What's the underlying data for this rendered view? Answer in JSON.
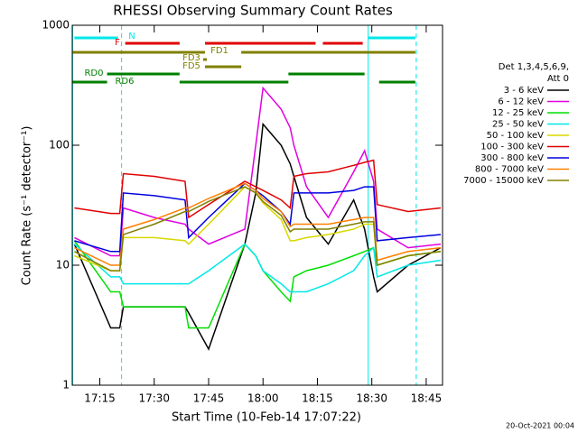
{
  "chart_data": {
    "type": "line",
    "title": "RHESSI Observing Summary Count Rates",
    "x_label": "Start Time (10-Feb-14 17:07:22)",
    "y_label": "Count Rate (s⁻¹ detector⁻¹)",
    "footer": "20-Oct-2021 00:04",
    "legend_title": [
      "Det 1,3,4,5,6,9,",
      "Att 0"
    ],
    "log_y": true,
    "xlim": [
      1027.4,
      1129.5
    ],
    "ylim": [
      1,
      1000
    ],
    "yticks": [
      1,
      10,
      100,
      1000
    ],
    "xticks": [
      {
        "value": 1035,
        "label": "17:15"
      },
      {
        "value": 1050,
        "label": "17:30"
      },
      {
        "value": 1065,
        "label": "17:45"
      },
      {
        "value": 1080,
        "label": "18:00"
      },
      {
        "value": 1095,
        "label": "18:15"
      },
      {
        "value": 1110,
        "label": "18:30"
      },
      {
        "value": 1125,
        "label": "18:45"
      }
    ],
    "x": [
      1028,
      1038,
      1040.5,
      1041.5,
      1050,
      1058.5,
      1059.5,
      1065,
      1075,
      1078,
      1080,
      1085,
      1087.5,
      1088.5,
      1092,
      1098,
      1105,
      1108,
      1110.5,
      1111.5,
      1120,
      1129
    ],
    "series": [
      {
        "name": "3 - 6 keV",
        "color": "#000000",
        "values": [
          15,
          3,
          3,
          4.5,
          4.5,
          4.5,
          4,
          2,
          15,
          40,
          150,
          100,
          70,
          55,
          25,
          15,
          35,
          20,
          8,
          6,
          10,
          14
        ]
      },
      {
        "name": "6 - 12 keV",
        "color": "#e000e0",
        "values": [
          17,
          12,
          12,
          30,
          25,
          22,
          20,
          15,
          20,
          100,
          300,
          200,
          140,
          100,
          45,
          25,
          60,
          90,
          50,
          20,
          14,
          15
        ]
      },
      {
        "name": "12 - 25 keV",
        "color": "#00e000",
        "values": [
          16,
          6,
          6,
          4.5,
          4.5,
          4.5,
          3,
          3,
          15,
          12,
          9,
          6,
          5,
          8,
          9,
          10,
          12,
          13,
          14,
          10,
          12,
          13
        ]
      },
      {
        "name": "25 - 50 keV",
        "color": "#00e8e8",
        "values": [
          15,
          8,
          8,
          7,
          7,
          7,
          7,
          9,
          15,
          12,
          9,
          7,
          6,
          6,
          6,
          7,
          9,
          12,
          14,
          8,
          10,
          11
        ]
      },
      {
        "name": "50 - 100 keV",
        "color": "#d8d800",
        "values": [
          12,
          9,
          9,
          17,
          17,
          16,
          15,
          22,
          45,
          40,
          33,
          24,
          16,
          16,
          17,
          18,
          20,
          22,
          22,
          10,
          12,
          13
        ]
      },
      {
        "name": "100 - 300 keV",
        "color": "#e00000",
        "values": [
          30,
          27,
          27,
          58,
          55,
          50,
          25,
          32,
          50,
          45,
          42,
          35,
          30,
          55,
          58,
          60,
          68,
          72,
          75,
          32,
          28,
          30
        ]
      },
      {
        "name": "300 - 800 keV",
        "color": "#0000e0",
        "values": [
          16,
          13,
          13,
          40,
          38,
          35,
          17,
          25,
          48,
          42,
          38,
          28,
          22,
          40,
          40,
          40,
          42,
          45,
          45,
          16,
          17,
          18
        ]
      },
      {
        "name": "800 - 7000 keV",
        "color": "#ff8000",
        "values": [
          14,
          10,
          10,
          20,
          24,
          30,
          30,
          36,
          48,
          42,
          36,
          28,
          21,
          22,
          22,
          22,
          24,
          25,
          25,
          11,
          13,
          14
        ]
      },
      {
        "name": "7000 - 15000 keV",
        "color": "#808000",
        "values": [
          13,
          9,
          9,
          18,
          22,
          28,
          28,
          34,
          45,
          40,
          34,
          26,
          19,
          20,
          20,
          20,
          22,
          23,
          23,
          10,
          12,
          13
        ]
      }
    ],
    "flags": [
      {
        "label": "N",
        "color": "#00e8e8",
        "segments": [
          [
            1028,
            1040
          ],
          [
            1109,
            1122
          ]
        ]
      },
      {
        "label": "F",
        "color": "#e00000",
        "segments": [
          [
            1042,
            1057
          ],
          [
            1064,
            1094.5
          ],
          [
            1096.5,
            1107.5
          ]
        ]
      },
      {
        "label": "FD1",
        "color": "#808000",
        "segments": [
          [
            1027.5,
            1064
          ],
          [
            1074,
            1122
          ]
        ]
      },
      {
        "label": "FD3",
        "color": "#808000",
        "segments": [
          [
            1063.5,
            1064.5
          ]
        ]
      },
      {
        "label": "FD5",
        "color": "#808000",
        "segments": [
          [
            1064,
            1074
          ]
        ]
      },
      {
        "label": "RD0",
        "color": "#008000",
        "segments": [
          [
            1037,
            1057
          ],
          [
            1087,
            1108
          ]
        ]
      },
      {
        "label": "RD6",
        "color": "#008000",
        "segments": [
          [
            1027.5,
            1037
          ],
          [
            1057,
            1087
          ],
          [
            1112,
            1122
          ]
        ]
      }
    ],
    "markers": [
      {
        "x": 1027.5,
        "style": "solid",
        "color": "#00e8e8"
      },
      {
        "x": 1041,
        "style": "dashed",
        "color": "#00e8e8"
      },
      {
        "x": 1109,
        "style": "solid",
        "color": "#00e8e8"
      },
      {
        "x": 1122.25,
        "style": "dashed",
        "color": "#00e8e8"
      }
    ]
  }
}
